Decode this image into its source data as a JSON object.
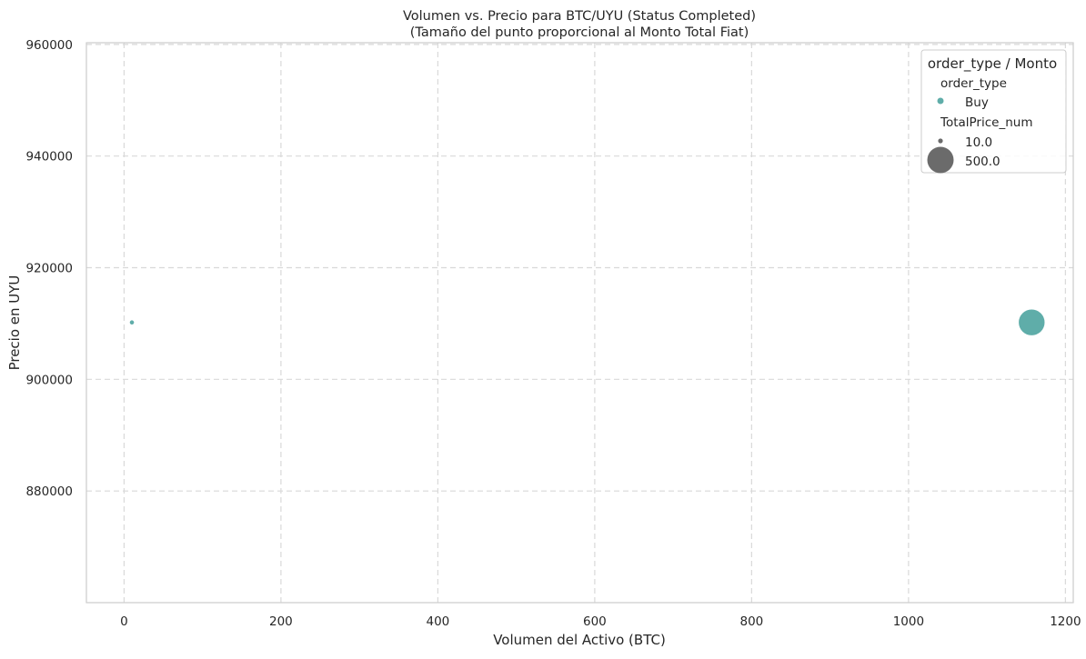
{
  "chart_data": {
    "type": "scatter",
    "title": "Volumen vs. Precio para BTC/UYU (Status Completed)",
    "subtitle": "(Tamaño del punto proporcional al Monto Total Fiat)",
    "xlabel": "Volumen del Activo (BTC)",
    "ylabel": "Precio en UYU",
    "xlim": [
      -48,
      1210
    ],
    "ylim": [
      860000,
      960300
    ],
    "xticks": [
      0,
      200,
      400,
      600,
      800,
      1000,
      1200
    ],
    "xtick_labels": [
      "0",
      "200",
      "400",
      "600",
      "800",
      "1000",
      "1200"
    ],
    "yticks": [
      880000,
      900000,
      920000,
      940000,
      960000
    ],
    "ytick_labels": [
      "880000",
      "900000",
      "920000",
      "940000",
      "960000"
    ],
    "grid": true,
    "legend_position": "top-right",
    "colors": {
      "buy": "#5fada9",
      "size_marker": "#6b6b6b",
      "grid": "#d9d9d9",
      "spine": "#cccccc"
    },
    "series": [
      {
        "name": "Buy",
        "points": [
          {
            "x": 10,
            "y": 910200,
            "size": 10.0
          },
          {
            "x": 1157,
            "y": 910200,
            "size": 500.0
          }
        ]
      }
    ],
    "size_range": [
      10.0,
      500.0
    ]
  },
  "legend": {
    "title": "order_type / Monto",
    "hue_header": "order_type",
    "hue_items": [
      "Buy"
    ],
    "size_header": "TotalPrice_num",
    "size_items": [
      "10.0",
      "500.0"
    ]
  }
}
